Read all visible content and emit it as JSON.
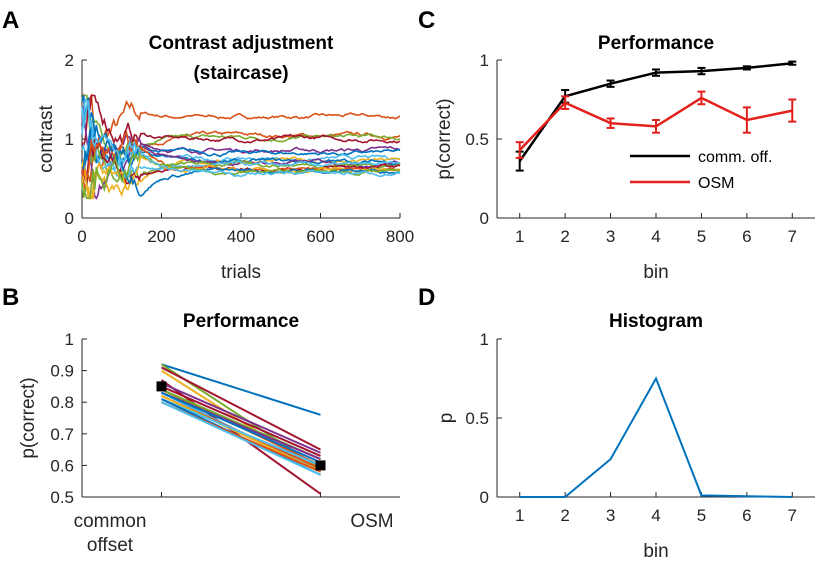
{
  "panels": {
    "A": {
      "letter": "A",
      "chart_data": {
        "type": "line",
        "title_lines": [
          "Contrast adjustment",
          "(staircase)"
        ],
        "xlabel": "trials",
        "ylabel": "contrast",
        "xlim": [
          0,
          800
        ],
        "ylim": [
          0,
          2
        ],
        "xticks": [
          0,
          200,
          400,
          600,
          800
        ],
        "yticks": [
          0,
          1,
          2
        ],
        "grid": false,
        "series_final_values": [
          1.28,
          1.04,
          1.02,
          1.0,
          0.86,
          0.82,
          0.75,
          0.72,
          0.71,
          0.7,
          0.68,
          0.66,
          0.64,
          0.62,
          0.61,
          0.6,
          0.58,
          0.57
        ],
        "colors": [
          "#D95319",
          "#D95319",
          "#77AC30",
          "#A2142F",
          "#7E2F8E",
          "#0072BD",
          "#4DBEEE",
          "#EDB120",
          "#0072BD",
          "#7E2F8E",
          "#77AC30",
          "#4DBEEE",
          "#A2142F",
          "#D95319",
          "#EDB120",
          "#0072BD",
          "#77AC30",
          "#4DBEEE"
        ]
      }
    },
    "B": {
      "letter": "B",
      "chart_data": {
        "type": "line",
        "title": "Performance",
        "ylabel": "p(correct)",
        "categories": [
          "common offset",
          "OSM"
        ],
        "category_lines": [
          [
            "common",
            "offset"
          ],
          [
            "OSM"
          ]
        ],
        "ylim": [
          0.5,
          1
        ],
        "yticks": [
          0.5,
          0.6,
          0.7,
          0.8,
          0.9,
          1
        ],
        "subject_pairs": [
          [
            0.92,
            0.76
          ],
          [
            0.92,
            0.59
          ],
          [
            0.91,
            0.65
          ],
          [
            0.9,
            0.58
          ],
          [
            0.87,
            0.51
          ],
          [
            0.86,
            0.64
          ],
          [
            0.85,
            0.63
          ],
          [
            0.84,
            0.6
          ],
          [
            0.84,
            0.62
          ],
          [
            0.83,
            0.62
          ],
          [
            0.83,
            0.58
          ],
          [
            0.83,
            0.61
          ],
          [
            0.82,
            0.59
          ],
          [
            0.82,
            0.58
          ],
          [
            0.81,
            0.6
          ],
          [
            0.81,
            0.57
          ],
          [
            0.8,
            0.58
          ],
          [
            0.8,
            0.57
          ]
        ],
        "colors": [
          "#0072BD",
          "#77AC30",
          "#A2142F",
          "#EDB120",
          "#A2142F",
          "#7E2F8E",
          "#A2142F",
          "#D95319",
          "#77AC30",
          "#7E2F8E",
          "#4DBEEE",
          "#0072BD",
          "#D95319",
          "#EDB120",
          "#4DBEEE",
          "#0072BD",
          "#D95319",
          "#4DBEEE"
        ],
        "mean": [
          0.85,
          0.6
        ],
        "sem": [
          0.01,
          0.01
        ]
      }
    },
    "C": {
      "letter": "C",
      "chart_data": {
        "type": "line",
        "title": "Performance",
        "xlabel": "bin",
        "ylabel": "p(correct)",
        "x": [
          1,
          2,
          3,
          4,
          5,
          6,
          7
        ],
        "xlim": [
          0.5,
          7.5
        ],
        "ylim": [
          0,
          1
        ],
        "yticks": [
          0,
          0.5,
          1
        ],
        "legend_position": "lower-right",
        "series": [
          {
            "name": "comm. off.",
            "color": "#000000",
            "values": [
              0.36,
              0.77,
              0.85,
              0.92,
              0.93,
              0.95,
              0.98
            ],
            "err": [
              0.06,
              0.04,
              0.02,
              0.02,
              0.02,
              0.01,
              0.01
            ]
          },
          {
            "name": "OSM",
            "color": "#E3201B",
            "values": [
              0.43,
              0.73,
              0.6,
              0.58,
              0.76,
              0.62,
              0.68
            ],
            "err": [
              0.05,
              0.04,
              0.03,
              0.04,
              0.04,
              0.08,
              0.07
            ]
          }
        ]
      }
    },
    "D": {
      "letter": "D",
      "chart_data": {
        "type": "line",
        "title": "Histogram",
        "xlabel": "bin",
        "ylabel": "p",
        "x": [
          1,
          2,
          3,
          4,
          5,
          6,
          7
        ],
        "xlim": [
          0.5,
          7.5
        ],
        "ylim": [
          0,
          1
        ],
        "yticks": [
          0,
          0.5,
          1
        ],
        "series": [
          {
            "color": "#0072BD",
            "values": [
              0,
              0,
              0.24,
              0.75,
              0.01,
              0.005,
              0
            ]
          }
        ]
      }
    }
  }
}
